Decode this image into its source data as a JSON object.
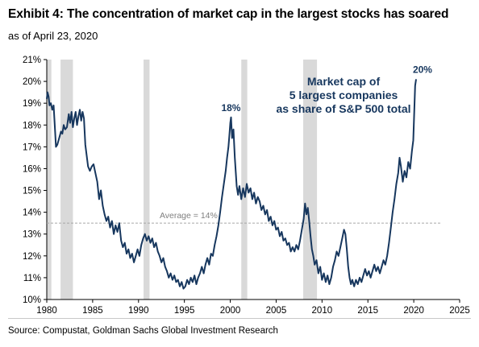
{
  "header": {
    "title": "Exhibit 4: The concentration of market cap in the largest stocks has soared",
    "subtitle": "as of April 23, 2020"
  },
  "footer": {
    "source": "Source: Compustat, Goldman Sachs Global Investment Research"
  },
  "colors": {
    "line": "#17375e",
    "recession": "#d9d9d9",
    "average_line": "#a6a6a6",
    "annotation": "#17375e"
  },
  "chart_data": {
    "type": "line",
    "title": "Exhibit 4: The concentration of market cap in the largest stocks has soared",
    "subtitle": "as of April 23, 2020",
    "xlabel": "",
    "ylabel": "",
    "xlim": [
      1980,
      2025
    ],
    "ylim": [
      10,
      21
    ],
    "x_ticks": [
      1980,
      1985,
      1990,
      1995,
      2000,
      2005,
      2010,
      2015,
      2020,
      2025
    ],
    "y_ticks": [
      10,
      11,
      12,
      13,
      14,
      15,
      16,
      17,
      18,
      19,
      20,
      21
    ],
    "y_tick_labels": [
      "10%",
      "11%",
      "12%",
      "13%",
      "14%",
      "15%",
      "16%",
      "17%",
      "18%",
      "19%",
      "20%",
      "21%"
    ],
    "grid": false,
    "series": [
      {
        "name": "Market cap of 5 largest companies as share of S&P 500 total",
        "points": [
          [
            1980.0,
            19.2
          ],
          [
            1980.08,
            19.5
          ],
          [
            1980.2,
            19.3
          ],
          [
            1980.3,
            18.9
          ],
          [
            1980.45,
            19.0
          ],
          [
            1980.6,
            18.7
          ],
          [
            1980.75,
            18.9
          ],
          [
            1980.9,
            17.8
          ],
          [
            1981.0,
            17.0
          ],
          [
            1981.15,
            17.1
          ],
          [
            1981.35,
            17.4
          ],
          [
            1981.55,
            17.7
          ],
          [
            1981.7,
            17.6
          ],
          [
            1981.85,
            18.0
          ],
          [
            1982.0,
            17.8
          ],
          [
            1982.2,
            17.9
          ],
          [
            1982.4,
            18.5
          ],
          [
            1982.55,
            18.1
          ],
          [
            1982.7,
            18.6
          ],
          [
            1982.85,
            17.9
          ],
          [
            1983.0,
            18.3
          ],
          [
            1983.15,
            18.6
          ],
          [
            1983.3,
            18.0
          ],
          [
            1983.45,
            18.4
          ],
          [
            1983.6,
            18.7
          ],
          [
            1983.75,
            18.2
          ],
          [
            1983.9,
            18.6
          ],
          [
            1984.05,
            18.3
          ],
          [
            1984.2,
            17.1
          ],
          [
            1984.35,
            16.6
          ],
          [
            1984.5,
            16.1
          ],
          [
            1984.7,
            15.9
          ],
          [
            1984.9,
            16.1
          ],
          [
            1985.1,
            16.2
          ],
          [
            1985.3,
            15.8
          ],
          [
            1985.5,
            15.4
          ],
          [
            1985.7,
            14.6
          ],
          [
            1985.9,
            15.0
          ],
          [
            1986.1,
            14.3
          ],
          [
            1986.3,
            13.9
          ],
          [
            1986.5,
            13.6
          ],
          [
            1986.7,
            13.8
          ],
          [
            1986.9,
            13.3
          ],
          [
            1987.1,
            13.6
          ],
          [
            1987.3,
            13.0
          ],
          [
            1987.5,
            13.4
          ],
          [
            1987.7,
            13.1
          ],
          [
            1987.9,
            13.5
          ],
          [
            1988.1,
            12.7
          ],
          [
            1988.3,
            12.4
          ],
          [
            1988.5,
            12.6
          ],
          [
            1988.7,
            12.1
          ],
          [
            1988.9,
            12.3
          ],
          [
            1989.1,
            11.9
          ],
          [
            1989.3,
            12.1
          ],
          [
            1989.5,
            11.7
          ],
          [
            1989.7,
            12.0
          ],
          [
            1989.9,
            12.3
          ],
          [
            1990.1,
            12.0
          ],
          [
            1990.3,
            12.5
          ],
          [
            1990.5,
            12.8
          ],
          [
            1990.7,
            13.0
          ],
          [
            1990.9,
            12.7
          ],
          [
            1991.1,
            12.9
          ],
          [
            1991.3,
            12.6
          ],
          [
            1991.5,
            12.8
          ],
          [
            1991.7,
            12.4
          ],
          [
            1991.9,
            12.6
          ],
          [
            1992.1,
            12.2
          ],
          [
            1992.3,
            12.0
          ],
          [
            1992.5,
            11.7
          ],
          [
            1992.7,
            11.9
          ],
          [
            1992.9,
            11.5
          ],
          [
            1993.1,
            11.3
          ],
          [
            1993.3,
            11.0
          ],
          [
            1993.5,
            11.2
          ],
          [
            1993.7,
            10.9
          ],
          [
            1993.9,
            11.1
          ],
          [
            1994.1,
            10.8
          ],
          [
            1994.3,
            10.9
          ],
          [
            1994.5,
            10.6
          ],
          [
            1994.7,
            10.8
          ],
          [
            1994.9,
            10.5
          ],
          [
            1995.1,
            10.6
          ],
          [
            1995.3,
            10.9
          ],
          [
            1995.5,
            10.7
          ],
          [
            1995.7,
            11.0
          ],
          [
            1995.9,
            10.8
          ],
          [
            1996.1,
            11.1
          ],
          [
            1996.3,
            10.7
          ],
          [
            1996.5,
            11.0
          ],
          [
            1996.7,
            11.2
          ],
          [
            1996.9,
            11.5
          ],
          [
            1997.1,
            11.2
          ],
          [
            1997.3,
            11.6
          ],
          [
            1997.5,
            11.9
          ],
          [
            1997.7,
            11.6
          ],
          [
            1997.9,
            12.1
          ],
          [
            1998.1,
            12.0
          ],
          [
            1998.3,
            12.5
          ],
          [
            1998.5,
            12.9
          ],
          [
            1998.7,
            13.4
          ],
          [
            1998.9,
            14.0
          ],
          [
            1999.1,
            14.7
          ],
          [
            1999.3,
            15.3
          ],
          [
            1999.5,
            15.9
          ],
          [
            1999.65,
            16.5
          ],
          [
            1999.8,
            17.0
          ],
          [
            1999.9,
            17.5
          ],
          [
            2000.0,
            18.1
          ],
          [
            2000.08,
            18.35
          ],
          [
            2000.2,
            17.4
          ],
          [
            2000.35,
            17.8
          ],
          [
            2000.5,
            16.5
          ],
          [
            2000.7,
            15.2
          ],
          [
            2000.85,
            14.8
          ],
          [
            2001.0,
            15.2
          ],
          [
            2001.2,
            14.6
          ],
          [
            2001.4,
            15.1
          ],
          [
            2001.6,
            14.7
          ],
          [
            2001.8,
            15.3
          ],
          [
            2002.0,
            14.9
          ],
          [
            2002.2,
            15.1
          ],
          [
            2002.4,
            14.6
          ],
          [
            2002.6,
            14.9
          ],
          [
            2002.8,
            14.4
          ],
          [
            2003.0,
            14.7
          ],
          [
            2003.2,
            14.5
          ],
          [
            2003.4,
            14.1
          ],
          [
            2003.6,
            14.3
          ],
          [
            2003.8,
            13.9
          ],
          [
            2004.0,
            14.1
          ],
          [
            2004.2,
            13.6
          ],
          [
            2004.4,
            13.8
          ],
          [
            2004.6,
            13.4
          ],
          [
            2004.8,
            13.6
          ],
          [
            2005.0,
            13.2
          ],
          [
            2005.2,
            13.3
          ],
          [
            2005.4,
            12.9
          ],
          [
            2005.6,
            13.1
          ],
          [
            2005.8,
            12.7
          ],
          [
            2006.0,
            12.8
          ],
          [
            2006.2,
            12.5
          ],
          [
            2006.4,
            12.6
          ],
          [
            2006.6,
            12.2
          ],
          [
            2006.8,
            12.4
          ],
          [
            2007.0,
            12.2
          ],
          [
            2007.2,
            12.5
          ],
          [
            2007.4,
            12.3
          ],
          [
            2007.6,
            12.7
          ],
          [
            2007.8,
            13.2
          ],
          [
            2008.0,
            13.7
          ],
          [
            2008.15,
            14.4
          ],
          [
            2008.3,
            13.9
          ],
          [
            2008.45,
            14.2
          ],
          [
            2008.6,
            13.6
          ],
          [
            2008.75,
            12.9
          ],
          [
            2008.9,
            12.3
          ],
          [
            2009.05,
            12.0
          ],
          [
            2009.2,
            11.6
          ],
          [
            2009.4,
            11.8
          ],
          [
            2009.6,
            11.2
          ],
          [
            2009.8,
            11.5
          ],
          [
            2010.0,
            10.9
          ],
          [
            2010.2,
            11.2
          ],
          [
            2010.4,
            10.8
          ],
          [
            2010.6,
            11.1
          ],
          [
            2010.8,
            10.7
          ],
          [
            2011.0,
            11.0
          ],
          [
            2011.2,
            11.5
          ],
          [
            2011.4,
            11.8
          ],
          [
            2011.6,
            12.2
          ],
          [
            2011.8,
            12.0
          ],
          [
            2012.0,
            12.4
          ],
          [
            2012.2,
            12.8
          ],
          [
            2012.4,
            13.2
          ],
          [
            2012.55,
            13.0
          ],
          [
            2012.7,
            12.3
          ],
          [
            2012.85,
            11.5
          ],
          [
            2013.0,
            11.0
          ],
          [
            2013.15,
            10.7
          ],
          [
            2013.3,
            10.9
          ],
          [
            2013.5,
            10.6
          ],
          [
            2013.7,
            10.9
          ],
          [
            2013.9,
            10.7
          ],
          [
            2014.1,
            11.0
          ],
          [
            2014.3,
            10.8
          ],
          [
            2014.5,
            11.1
          ],
          [
            2014.7,
            11.4
          ],
          [
            2014.9,
            11.1
          ],
          [
            2015.1,
            11.3
          ],
          [
            2015.3,
            11.0
          ],
          [
            2015.5,
            11.3
          ],
          [
            2015.7,
            11.6
          ],
          [
            2015.9,
            11.3
          ],
          [
            2016.1,
            11.5
          ],
          [
            2016.3,
            11.2
          ],
          [
            2016.5,
            11.5
          ],
          [
            2016.7,
            11.8
          ],
          [
            2016.9,
            11.6
          ],
          [
            2017.1,
            12.0
          ],
          [
            2017.3,
            12.6
          ],
          [
            2017.5,
            13.3
          ],
          [
            2017.7,
            14.0
          ],
          [
            2017.9,
            14.6
          ],
          [
            2018.1,
            15.3
          ],
          [
            2018.3,
            15.8
          ],
          [
            2018.45,
            16.5
          ],
          [
            2018.6,
            16.1
          ],
          [
            2018.8,
            15.4
          ],
          [
            2019.0,
            15.9
          ],
          [
            2019.2,
            15.6
          ],
          [
            2019.4,
            16.3
          ],
          [
            2019.6,
            16.0
          ],
          [
            2019.8,
            16.8
          ],
          [
            2019.95,
            17.3
          ],
          [
            2020.05,
            18.6
          ],
          [
            2020.15,
            19.8
          ],
          [
            2020.25,
            20.1
          ]
        ]
      }
    ],
    "average": {
      "value": 13.5,
      "label": "Average = 14%"
    },
    "recessions": [
      [
        1980.0,
        1980.5
      ],
      [
        1981.5,
        1982.85
      ],
      [
        1990.55,
        1991.2
      ],
      [
        2001.2,
        2001.85
      ],
      [
        2007.95,
        2009.45
      ]
    ],
    "annotations": [
      {
        "x": 2000.08,
        "y": 18.35,
        "text": "18%"
      },
      {
        "x": 2020.25,
        "y": 20.1,
        "text": "20%"
      }
    ],
    "series_label": [
      "Market cap of",
      "5 largest companies",
      "as share of S&P 500 total"
    ]
  }
}
